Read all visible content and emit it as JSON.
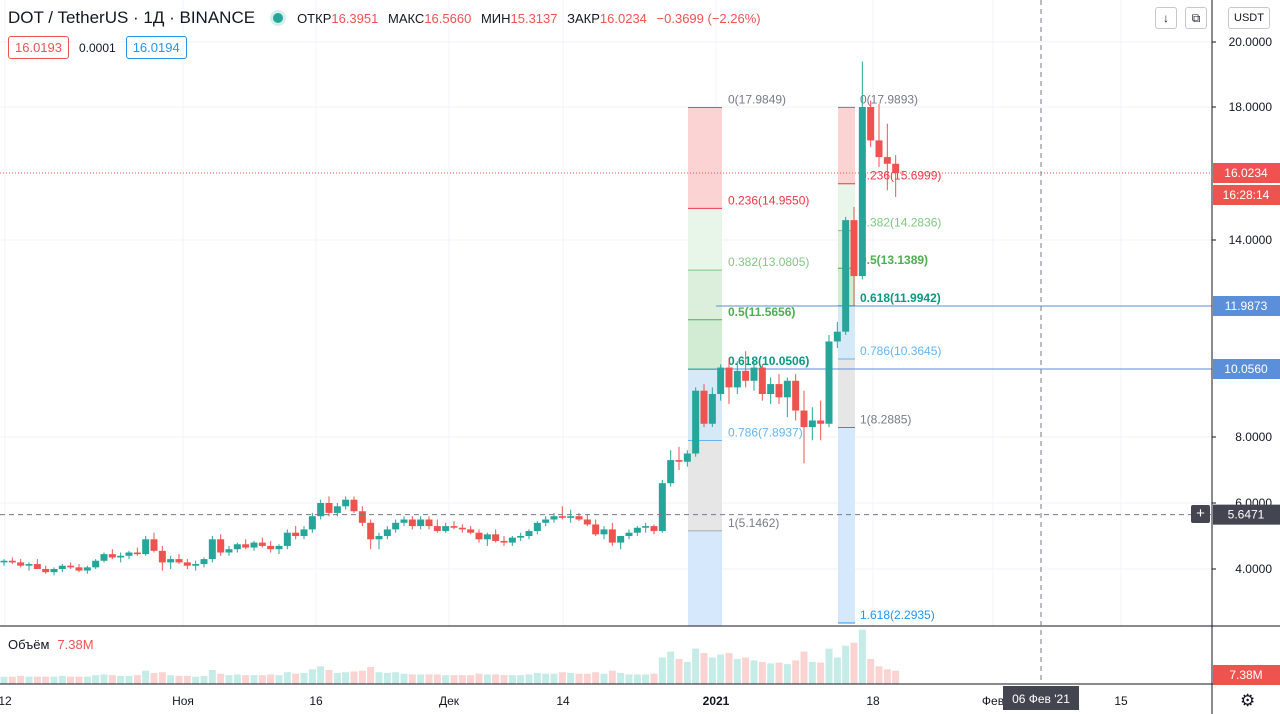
{
  "header": {
    "symbol": "DOT / TetherUS · 1Д · BINANCE",
    "ohlc": [
      {
        "label": "ОТКР",
        "value": "16.3951"
      },
      {
        "label": "МАКС",
        "value": "16.5660"
      },
      {
        "label": "МИН",
        "value": "15.3137"
      },
      {
        "label": "ЗАКР",
        "value": "16.0234"
      }
    ],
    "change": "−0.3699 (−2.26%)"
  },
  "quote": {
    "bid": "16.0193",
    "spread": "0.0001",
    "ask": "16.0194"
  },
  "toolbar": {
    "down_icon": "arrow-down-icon",
    "expand_icon": "expand-icon",
    "currency": "USDT"
  },
  "volume": {
    "label": "Объём",
    "value": "7.38M",
    "axis_badge": "7.38M"
  },
  "crosshair": {
    "price": "5.6471",
    "date": "06 Фев '21",
    "plus_label": "+"
  },
  "colors": {
    "up": "#26a69a",
    "down": "#ef5350",
    "line": "#2962ff",
    "grid": "#f0f3fa"
  },
  "chart_data": {
    "type": "candlestick",
    "price_axis": {
      "ticks": [
        {
          "label": "20.0000",
          "value": 20
        },
        {
          "label": "18.0000",
          "value": 18
        },
        {
          "label": "14.0000",
          "value": 14
        },
        {
          "label": "8.0000",
          "value": 8
        },
        {
          "label": "6.0000",
          "value": 6
        },
        {
          "label": "4.0000",
          "value": 4
        }
      ],
      "range": [
        2.2,
        20.6
      ],
      "last_price": "16.0234",
      "countdown": "16:28:14",
      "level_labels": [
        "11.9873",
        "10.0560"
      ],
      "level_values": [
        11.9873,
        10.056
      ]
    },
    "time_axis": [
      "12",
      "Ноя",
      "16",
      "Дек",
      "14",
      "2021",
      "18",
      "Фев",
      "15"
    ],
    "candles": [
      [
        4.2,
        4.3,
        4.1,
        4.25
      ],
      [
        4.25,
        4.35,
        4.15,
        4.2
      ],
      [
        4.2,
        4.3,
        4.05,
        4.1
      ],
      [
        4.1,
        4.2,
        3.95,
        4.15
      ],
      [
        4.15,
        4.3,
        4.05,
        4.0
      ],
      [
        4.0,
        4.1,
        3.85,
        3.9
      ],
      [
        3.9,
        4.05,
        3.8,
        4.0
      ],
      [
        4.0,
        4.15,
        3.9,
        4.1
      ],
      [
        4.1,
        4.2,
        4.0,
        4.05
      ],
      [
        4.05,
        4.15,
        3.9,
        3.95
      ],
      [
        3.95,
        4.1,
        3.85,
        4.05
      ],
      [
        4.05,
        4.3,
        4.0,
        4.25
      ],
      [
        4.25,
        4.5,
        4.2,
        4.45
      ],
      [
        4.45,
        4.6,
        4.3,
        4.35
      ],
      [
        4.35,
        4.5,
        4.2,
        4.4
      ],
      [
        4.4,
        4.55,
        4.3,
        4.5
      ],
      [
        4.5,
        4.65,
        4.4,
        4.45
      ],
      [
        4.45,
        5.0,
        4.4,
        4.9
      ],
      [
        4.9,
        5.1,
        4.5,
        4.55
      ],
      [
        4.55,
        4.7,
        3.95,
        4.2
      ],
      [
        4.2,
        4.4,
        4.0,
        4.3
      ],
      [
        4.3,
        4.45,
        4.15,
        4.2
      ],
      [
        4.2,
        4.3,
        4.0,
        4.1
      ],
      [
        4.1,
        4.25,
        3.95,
        4.15
      ],
      [
        4.15,
        4.35,
        4.05,
        4.3
      ],
      [
        4.3,
        5.0,
        4.2,
        4.9
      ],
      [
        4.9,
        5.05,
        4.4,
        4.5
      ],
      [
        4.5,
        4.7,
        4.4,
        4.6
      ],
      [
        4.6,
        4.8,
        4.5,
        4.75
      ],
      [
        4.75,
        4.9,
        4.6,
        4.65
      ],
      [
        4.65,
        4.85,
        4.55,
        4.8
      ],
      [
        4.8,
        4.95,
        4.65,
        4.7
      ],
      [
        4.7,
        4.85,
        4.5,
        4.6
      ],
      [
        4.6,
        4.75,
        4.45,
        4.7
      ],
      [
        4.7,
        5.2,
        4.6,
        5.1
      ],
      [
        5.1,
        5.3,
        4.9,
        5.0
      ],
      [
        5.0,
        5.3,
        4.9,
        5.2
      ],
      [
        5.2,
        5.7,
        5.1,
        5.6
      ],
      [
        5.6,
        6.1,
        5.5,
        6.0
      ],
      [
        6.0,
        6.2,
        5.6,
        5.7
      ],
      [
        5.7,
        6.0,
        5.6,
        5.9
      ],
      [
        5.9,
        6.2,
        5.8,
        6.1
      ],
      [
        6.1,
        6.2,
        5.7,
        5.75
      ],
      [
        5.75,
        5.9,
        5.3,
        5.4
      ],
      [
        5.4,
        5.5,
        4.6,
        4.9
      ],
      [
        4.9,
        5.1,
        4.6,
        5.0
      ],
      [
        5.0,
        5.3,
        4.9,
        5.2
      ],
      [
        5.2,
        5.5,
        5.1,
        5.4
      ],
      [
        5.4,
        5.6,
        5.3,
        5.5
      ],
      [
        5.5,
        5.6,
        5.2,
        5.3
      ],
      [
        5.3,
        5.6,
        5.2,
        5.5
      ],
      [
        5.5,
        5.6,
        5.2,
        5.3
      ],
      [
        5.3,
        5.5,
        5.1,
        5.15
      ],
      [
        5.15,
        5.4,
        5.1,
        5.3
      ],
      [
        5.3,
        5.45,
        5.2,
        5.25
      ],
      [
        5.25,
        5.35,
        5.1,
        5.2
      ],
      [
        5.2,
        5.3,
        5.05,
        5.1
      ],
      [
        5.1,
        5.2,
        4.8,
        4.9
      ],
      [
        4.9,
        5.1,
        4.7,
        5.05
      ],
      [
        5.05,
        5.2,
        4.8,
        4.85
      ],
      [
        4.85,
        5.0,
        4.7,
        4.8
      ],
      [
        4.8,
        5.0,
        4.7,
        4.95
      ],
      [
        4.95,
        5.1,
        4.85,
        5.0
      ],
      [
        5.0,
        5.2,
        4.9,
        5.15
      ],
      [
        5.15,
        5.45,
        5.05,
        5.4
      ],
      [
        5.4,
        5.6,
        5.3,
        5.5
      ],
      [
        5.5,
        5.7,
        5.4,
        5.6
      ],
      [
        5.6,
        5.9,
        5.5,
        5.55
      ],
      [
        5.55,
        5.8,
        5.4,
        5.6
      ],
      [
        5.6,
        5.7,
        5.45,
        5.5
      ],
      [
        5.5,
        5.65,
        5.3,
        5.35
      ],
      [
        5.35,
        5.5,
        5.0,
        5.05
      ],
      [
        5.05,
        5.3,
        4.9,
        5.2
      ],
      [
        5.2,
        5.4,
        4.7,
        4.8
      ],
      [
        4.8,
        5.0,
        4.6,
        5.0
      ],
      [
        5.0,
        5.2,
        4.9,
        5.1
      ],
      [
        5.1,
        5.3,
        5.0,
        5.25
      ],
      [
        5.25,
        5.4,
        5.1,
        5.3
      ],
      [
        5.3,
        5.35,
        5.05,
        5.15
      ],
      [
        5.15,
        6.7,
        5.1,
        6.6
      ],
      [
        6.6,
        7.6,
        6.5,
        7.3
      ],
      [
        7.3,
        7.7,
        7.0,
        7.25
      ],
      [
        7.25,
        7.6,
        7.1,
        7.5
      ],
      [
        7.5,
        9.5,
        7.4,
        9.4
      ],
      [
        9.4,
        9.6,
        8.3,
        8.4
      ],
      [
        8.4,
        9.5,
        8.3,
        9.3
      ],
      [
        9.3,
        10.2,
        9.1,
        10.1
      ],
      [
        10.1,
        10.4,
        9.0,
        9.5
      ],
      [
        9.5,
        10.3,
        9.3,
        10.0
      ],
      [
        10.0,
        10.6,
        9.5,
        9.7
      ],
      [
        9.7,
        10.3,
        9.4,
        10.1
      ],
      [
        10.1,
        10.2,
        9.1,
        9.3
      ],
      [
        9.3,
        9.8,
        9.0,
        9.6
      ],
      [
        9.6,
        9.9,
        9.0,
        9.2
      ],
      [
        9.2,
        9.8,
        8.6,
        9.7
      ],
      [
        9.7,
        9.9,
        8.5,
        8.8
      ],
      [
        8.8,
        9.4,
        7.2,
        8.3
      ],
      [
        8.3,
        8.9,
        7.9,
        8.5
      ],
      [
        8.5,
        9.1,
        7.9,
        8.4
      ],
      [
        8.4,
        11.1,
        8.3,
        10.9
      ],
      [
        10.9,
        11.5,
        10.7,
        11.2
      ],
      [
        11.2,
        14.7,
        11.1,
        14.6
      ],
      [
        14.6,
        15.0,
        12.0,
        12.9
      ],
      [
        12.9,
        19.4,
        12.8,
        18.0
      ],
      [
        18.0,
        18.2,
        16.8,
        17.0
      ],
      [
        17.0,
        18.1,
        16.2,
        16.5
      ],
      [
        16.5,
        17.5,
        15.5,
        16.3
      ],
      [
        16.3,
        16.56,
        15.3,
        16.02
      ]
    ],
    "volumes": [
      1,
      1,
      1.1,
      1,
      1,
      1,
      1,
      1.1,
      1,
      1,
      1,
      1.2,
      1.3,
      1.2,
      1.1,
      1.1,
      1.2,
      1.8,
      1.5,
      1.6,
      1.2,
      1.1,
      1.1,
      1,
      1.1,
      1.9,
      1.4,
      1.2,
      1.3,
      1.2,
      1.2,
      1.2,
      1.3,
      1.2,
      1.6,
      1.4,
      1.5,
      2.0,
      2.4,
      1.9,
      1.5,
      1.6,
      1.7,
      1.8,
      2.3,
      1.6,
      1.5,
      1.6,
      1.4,
      1.3,
      1.3,
      1.3,
      1.3,
      1.2,
      1.2,
      1.2,
      1.2,
      1.4,
      1.3,
      1.3,
      1.2,
      1.2,
      1.2,
      1.3,
      1.5,
      1.4,
      1.4,
      1.6,
      1.5,
      1.4,
      1.4,
      1.6,
      1.4,
      1.8,
      1.5,
      1.3,
      1.3,
      1.3,
      1.4,
      3.6,
      4.4,
      3.4,
      3.0,
      4.8,
      4.2,
      3.6,
      4.0,
      4.2,
      3.4,
      3.6,
      3.2,
      3.0,
      2.8,
      2.9,
      2.7,
      3.2,
      4.4,
      3.0,
      2.9,
      4.8,
      3.6,
      5.2,
      5.6,
      7.38,
      3.4,
      2.4,
      2.0,
      1.8
    ]
  },
  "fib_left": {
    "levels": [
      {
        "label": "0(17.9849)",
        "ratio": 0
      },
      {
        "label": "0.236(14.9550)",
        "ratio": 0.236
      },
      {
        "label": "0.382(13.0805)",
        "ratio": 0.382
      },
      {
        "label": "0.5(11.5656)",
        "ratio": 0.5
      },
      {
        "label": "0.618(10.0506)",
        "ratio": 0.618
      },
      {
        "label": "0.786(7.8937)",
        "ratio": 0.786
      },
      {
        "label": "1(5.1462)",
        "ratio": 1
      }
    ],
    "high": 17.9849,
    "low": 5.1462
  },
  "fib_right": {
    "levels": [
      {
        "label": "0(17.9893)",
        "ratio": 0
      },
      {
        "label": "0.236(15.6999)",
        "ratio": 0.236
      },
      {
        "label": "0.382(14.2836)",
        "ratio": 0.382
      },
      {
        "label": "0.5(13.1389)",
        "ratio": 0.5
      },
      {
        "label": "0.618(11.9942)",
        "ratio": 0.618
      },
      {
        "label": "0.786(10.3645)",
        "ratio": 0.786
      },
      {
        "label": "1(8.2885)",
        "ratio": 1
      },
      {
        "label": "1.618(2.2935)",
        "ratio": 1.618
      }
    ],
    "high": 17.9893,
    "low": 8.2885
  }
}
